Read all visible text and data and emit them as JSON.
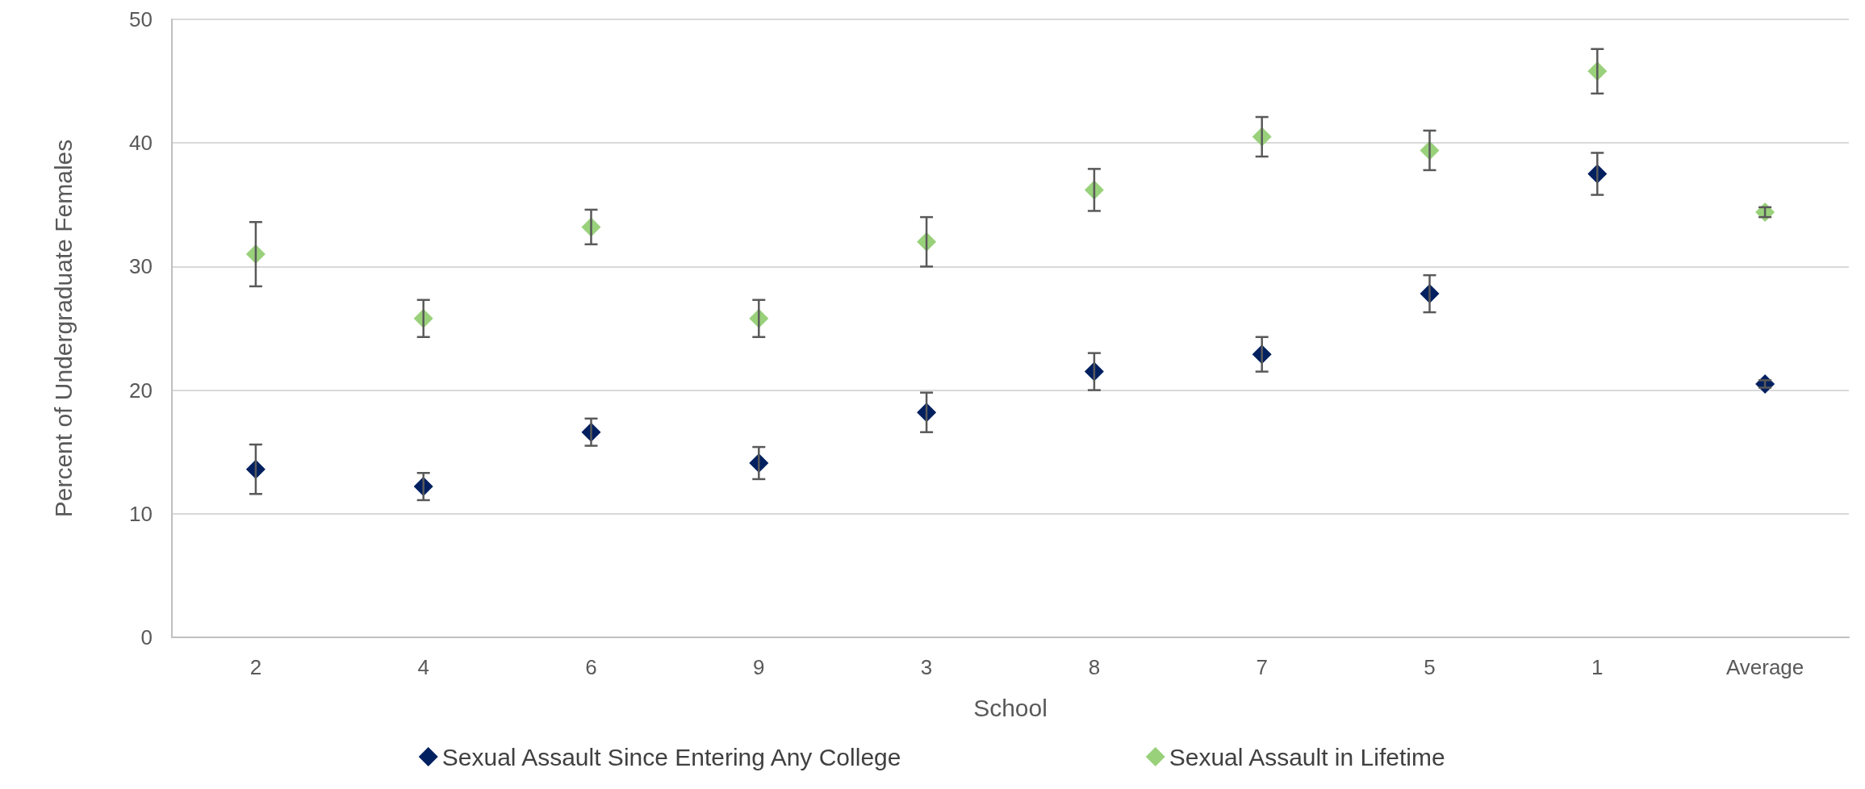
{
  "chart_data": {
    "type": "scatter",
    "xlabel": "School",
    "ylabel": "Percent of Undergraduate Females",
    "categories": [
      "2",
      "4",
      "6",
      "9",
      "3",
      "8",
      "7",
      "5",
      "1",
      "Average"
    ],
    "series": [
      {
        "name": "Sexual Assault Since Entering Any College",
        "color": "#002060",
        "values": [
          13.6,
          12.2,
          16.6,
          14.1,
          18.2,
          21.5,
          22.9,
          27.8,
          37.5,
          20.5
        ],
        "errors": [
          2.0,
          1.1,
          1.1,
          1.3,
          1.6,
          1.5,
          1.4,
          1.5,
          1.7,
          0.3
        ]
      },
      {
        "name": "Sexual Assault in Lifetime",
        "color": "#99d17b",
        "values": [
          31.0,
          25.8,
          33.2,
          25.8,
          32.0,
          36.2,
          40.5,
          39.4,
          45.8,
          34.4
        ],
        "errors": [
          2.6,
          1.5,
          1.4,
          1.5,
          2.0,
          1.7,
          1.6,
          1.6,
          1.8,
          0.4
        ]
      }
    ],
    "ylim": [
      0,
      50
    ],
    "yticks": [
      0,
      10,
      20,
      30,
      40,
      50
    ],
    "grid": "y",
    "legend": "bottom",
    "marker": "diamond"
  }
}
